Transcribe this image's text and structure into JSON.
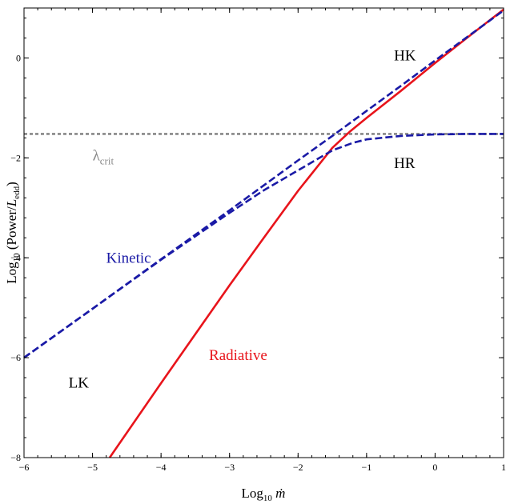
{
  "chart_data": {
    "type": "line",
    "xlabel": {
      "main": "Log",
      "sub": "10",
      "suffix": " ṁ"
    },
    "ylabel": {
      "main": "Log",
      "sub": "10",
      "mid": " (Power/",
      "italic": "L",
      "italic_sub": "edd",
      "end": ")"
    },
    "xlim": [
      -6,
      1
    ],
    "ylim": [
      -8,
      1
    ],
    "x_ticks": [
      -6,
      -5,
      -4,
      -3,
      -2,
      -1,
      0,
      1
    ],
    "x_tick_labels": [
      "−6",
      "−5",
      "−4",
      "−3",
      "−2",
      "−1",
      "0",
      "1"
    ],
    "y_ticks": [
      -8,
      -6,
      -4,
      -2,
      0
    ],
    "y_tick_labels": [
      "−8",
      "−6",
      "−4",
      "−2",
      "0"
    ],
    "grid": false,
    "colors": {
      "kinetic": "#1a1aa6",
      "radiative": "#e8141b",
      "lambda": "#888888",
      "text": "#000000"
    },
    "series": [
      {
        "name": "Kinetic",
        "style": "dashed",
        "color": "#1a1aa6",
        "x": [
          -6,
          -5,
          -4,
          -3,
          -2.5,
          -2,
          -1.5,
          -1,
          -0.5,
          0,
          0.5,
          1
        ],
        "y": [
          -6.0,
          -5.02,
          -4.03,
          -3.05,
          -2.55,
          -2.05,
          -1.56,
          -1.06,
          -0.56,
          -0.05,
          0.45,
          0.95
        ]
      },
      {
        "name": "",
        "style": "dashed",
        "color": "#1a1aa6",
        "x": [
          -6,
          -5,
          -4,
          -3,
          -2.5,
          -2,
          -1.5,
          -1.2,
          -1,
          -0.5,
          0,
          0.5,
          1
        ],
        "y": [
          -6.0,
          -5.02,
          -4.04,
          -3.1,
          -2.65,
          -2.25,
          -1.85,
          -1.7,
          -1.63,
          -1.56,
          -1.53,
          -1.52,
          -1.52
        ]
      },
      {
        "name": "Radiative",
        "style": "solid",
        "color": "#e8141b",
        "x": [
          -4.75,
          -4.0,
          -3.5,
          -3.0,
          -2.5,
          -2.0,
          -1.75,
          -1.5,
          -1.25,
          -1.0,
          -0.5,
          0,
          0.5,
          1
        ],
        "y": [
          -8.0,
          -6.51,
          -5.53,
          -4.55,
          -3.6,
          -2.66,
          -2.23,
          -1.8,
          -1.48,
          -1.2,
          -0.66,
          -0.1,
          0.44,
          0.97
        ]
      },
      {
        "name": "λcrit",
        "style": "dotted",
        "color": "#888888",
        "x": [
          -6,
          1
        ],
        "y": [
          -1.52,
          -1.52
        ]
      }
    ],
    "annotations": [
      {
        "text": "HK",
        "x": -0.6,
        "y": -0.05,
        "color": "#000000"
      },
      {
        "text": "HR",
        "x": -0.6,
        "y": -2.2,
        "color": "#000000"
      },
      {
        "text": "Kinetic",
        "x": -4.8,
        "y": -4.1,
        "color": "#1a1aa6"
      },
      {
        "text": "Radiative",
        "x": -3.3,
        "y": -6.05,
        "color": "#e8141b"
      },
      {
        "text": "LK",
        "x": -5.35,
        "y": -6.6,
        "color": "#000000"
      },
      {
        "text": "λ",
        "sub": "crit",
        "x": -5.0,
        "y": -2.05,
        "color": "#888888"
      }
    ]
  }
}
